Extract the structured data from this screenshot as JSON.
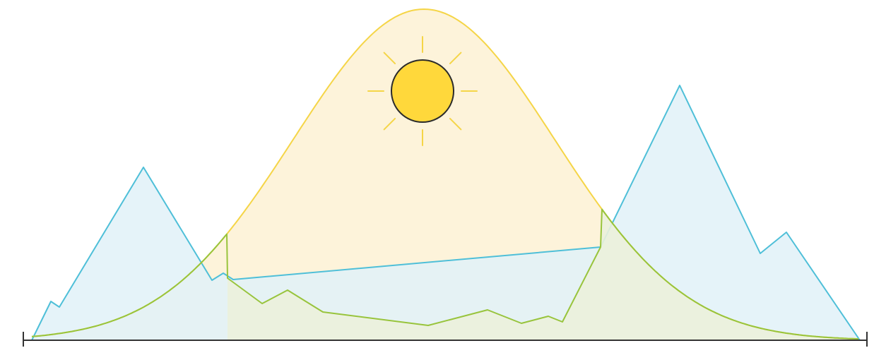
{
  "illustration": {
    "shapes": [
      "bell-curve",
      "mountains",
      "ground-strip",
      "sun",
      "baseline-axis"
    ],
    "colors": {
      "bell_stroke": "#F5D547",
      "bell_fill": "#FDF3DA",
      "mountain_stroke": "#4EBFD8",
      "mountain_fill": "#E1F1F8",
      "ground_stroke": "#98C43C",
      "ground_fill": "#EBF1DC",
      "sun_fill": "#FFD83B",
      "sun_stroke": "#2B2B2B",
      "ray_stroke": "#F5D547",
      "axis_stroke": "#333333"
    }
  }
}
